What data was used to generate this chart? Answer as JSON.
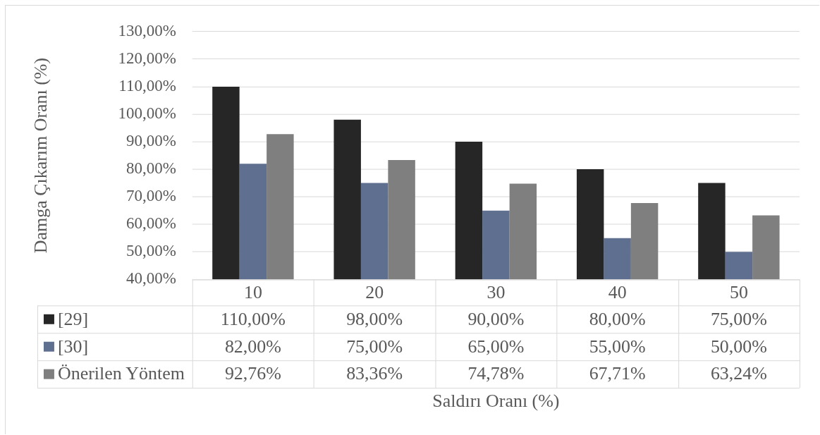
{
  "chart_data": {
    "type": "bar",
    "xlabel": "Saldırı Oranı (%)",
    "ylabel": "Damga Çıkarım Oranı (%)",
    "categories": [
      "10",
      "20",
      "30",
      "40",
      "50"
    ],
    "series": [
      {
        "name": "[29]",
        "color": "#262626",
        "values": [
          110,
          98,
          90,
          80,
          75
        ],
        "value_labels": [
          "110,00%",
          "98,00%",
          "90,00%",
          "80,00%",
          "75,00%"
        ]
      },
      {
        "name": "[30]",
        "color": "#5f6f8f",
        "values": [
          82,
          75,
          65,
          55,
          50
        ],
        "value_labels": [
          "82,00%",
          "75,00%",
          "65,00%",
          "55,00%",
          "50,00%"
        ]
      },
      {
        "name": "Önerilen Yöntem",
        "color": "#7f7f7f",
        "values": [
          92.76,
          83.36,
          74.78,
          67.71,
          63.24
        ],
        "value_labels": [
          "92,76%",
          "83,36%",
          "74,78%",
          "67,71%",
          "63,24%"
        ]
      }
    ],
    "ylim": [
      40,
      130
    ],
    "yticks": [
      {
        "value": 40,
        "label": "40,00%"
      },
      {
        "value": 50,
        "label": "50,00%"
      },
      {
        "value": 60,
        "label": "60,00%"
      },
      {
        "value": 70,
        "label": "70,00%"
      },
      {
        "value": 80,
        "label": "80,00%"
      },
      {
        "value": 90,
        "label": "90,00%"
      },
      {
        "value": 100,
        "label": "100,00%"
      },
      {
        "value": 110,
        "label": "110,00%"
      },
      {
        "value": 120,
        "label": "120,00%"
      },
      {
        "value": 130,
        "label": "130,00%"
      }
    ],
    "grid": "y",
    "legend": "bottom left"
  }
}
